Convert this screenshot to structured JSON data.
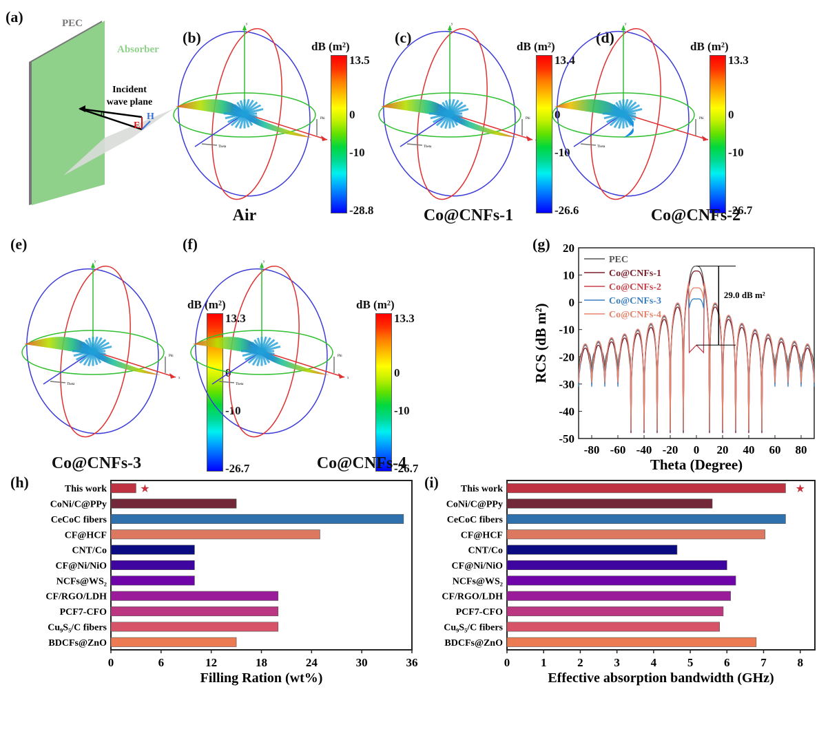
{
  "panels": {
    "a": {
      "label": "(a)",
      "pec": "PEC",
      "absorber": "Absorber",
      "plane_line1": "Incident",
      "plane_line2": "wave plane",
      "theta": "θ",
      "E": "E",
      "H": "H"
    },
    "b": {
      "label": "(b)",
      "caption": "Air",
      "cb_title": "dB (m²)",
      "cb_max": "13.5",
      "cb_mid1": "0",
      "cb_mid2": "-10",
      "cb_min": "-28.8"
    },
    "c": {
      "label": "(c)",
      "caption": "Co@CNFs-1",
      "cb_title": "dB (m²)",
      "cb_max": "13.4",
      "cb_mid1": "0",
      "cb_mid2": "-10",
      "cb_min": "-26.6"
    },
    "d": {
      "label": "(d)",
      "caption": "Co@CNFs-2",
      "cb_title": "dB (m²)",
      "cb_max": "13.3",
      "cb_mid1": "0",
      "cb_mid2": "-10",
      "cb_min": "-26.7"
    },
    "e": {
      "label": "(e)",
      "caption": "Co@CNFs-3",
      "cb_title": "dB (m²)",
      "cb_max": "13.3",
      "cb_mid1": "0",
      "cb_mid2": "-10",
      "cb_min": "-26.7"
    },
    "f": {
      "label": "(f)",
      "caption": "Co@CNFs-4",
      "cb_title": "dB (m²)",
      "cb_max": "13.3",
      "cb_mid1": "0",
      "cb_mid2": "-10",
      "cb_min": "-26.7"
    },
    "g": {
      "label": "(g)"
    },
    "h": {
      "label": "(h)"
    },
    "i": {
      "label": "(i)"
    }
  },
  "axes3d": {
    "x": "x",
    "y": "y",
    "phi": "Phi",
    "theta": "Theta"
  },
  "chart_data": [
    {
      "id": "g",
      "type": "line",
      "xlabel": "Theta (Degree)",
      "ylabel": "RCS (dB m²)",
      "xlim": [
        -90,
        90
      ],
      "ylim": [
        -50,
        20
      ],
      "xticks": [
        -80,
        -60,
        -40,
        -20,
        0,
        20,
        40,
        60,
        80
      ],
      "yticks": [
        -50,
        -40,
        -30,
        -20,
        -10,
        0,
        10,
        20
      ],
      "legend": "top-left",
      "annotation": "29.0 dB m²",
      "annotation_range": [
        13.3,
        -15.7
      ],
      "series": [
        {
          "name": "PEC",
          "color": "#555555",
          "peak": 13.3,
          "lobe": 12.5,
          "floor": -18
        },
        {
          "name": "Co@CNFs-1",
          "color": "#7a1f2b",
          "peak": 11.5,
          "lobe": 11.5,
          "floor": -22
        },
        {
          "name": "Co@CNFs-2",
          "color": "#c8404a",
          "peak": -15.7,
          "lobe": 13.0,
          "floor": -22
        },
        {
          "name": "Co@CNFs-3",
          "color": "#3a7fc0",
          "peak": 1.2,
          "lobe": 12.8,
          "floor": -24
        },
        {
          "name": "Co@CNFs-4",
          "color": "#e8826a",
          "peak": 5.3,
          "lobe": 13.0,
          "floor": -22
        }
      ]
    },
    {
      "id": "h",
      "type": "bar",
      "orientation": "horizontal",
      "xlabel": "Filling Ration (wt%)",
      "xlim": [
        0,
        36
      ],
      "xticks": [
        0,
        6,
        12,
        18,
        24,
        30,
        36
      ],
      "highlight": "This work",
      "categories": [
        "This work",
        "CoNi/C@PPy",
        "CeCoC fibers",
        "CF@HCF",
        "CNT/Co",
        "CF@Ni/NiO",
        "NCFs@WS₂",
        "CF/RGO/LDH",
        "PCF7-CFO",
        "Cu₉S₅/C fibers",
        "BDCFs@ZnO"
      ],
      "values": [
        3,
        15,
        35,
        25,
        10,
        10,
        10,
        20,
        20,
        20,
        15
      ],
      "colors": [
        "#be3241",
        "#722838",
        "#2f71ac",
        "#dc7860",
        "#0c0c82",
        "#3f05a0",
        "#6f05a8",
        "#9a1c9a",
        "#bb3782",
        "#d75468",
        "#ec7a52"
      ]
    },
    {
      "id": "i",
      "type": "bar",
      "orientation": "horizontal",
      "xlabel": "Effective absorption bandwidth (GHz)",
      "xlim": [
        0,
        8.4
      ],
      "xticks": [
        0,
        1,
        2,
        3,
        4,
        5,
        6,
        7,
        8
      ],
      "highlight": "This work",
      "categories": [
        "This work",
        "CoNi/C@PPy",
        "CeCoC fibers",
        "CF@HCF",
        "CNT/Co",
        "CF@Ni/NiO",
        "NCFs@WS₂",
        "CF/RGO/LDH",
        "PCF7-CFO",
        "Cu₉S₅/C fibers",
        "BDCFs@ZnO"
      ],
      "values": [
        7.6,
        5.6,
        7.6,
        7.04,
        4.64,
        6.0,
        6.24,
        6.1,
        5.9,
        5.8,
        6.8
      ],
      "colors": [
        "#be3241",
        "#722838",
        "#2f71ac",
        "#dc7860",
        "#0c0c82",
        "#3f05a0",
        "#6f05a8",
        "#9a1c9a",
        "#bb3782",
        "#d75468",
        "#ec7a52"
      ]
    }
  ]
}
